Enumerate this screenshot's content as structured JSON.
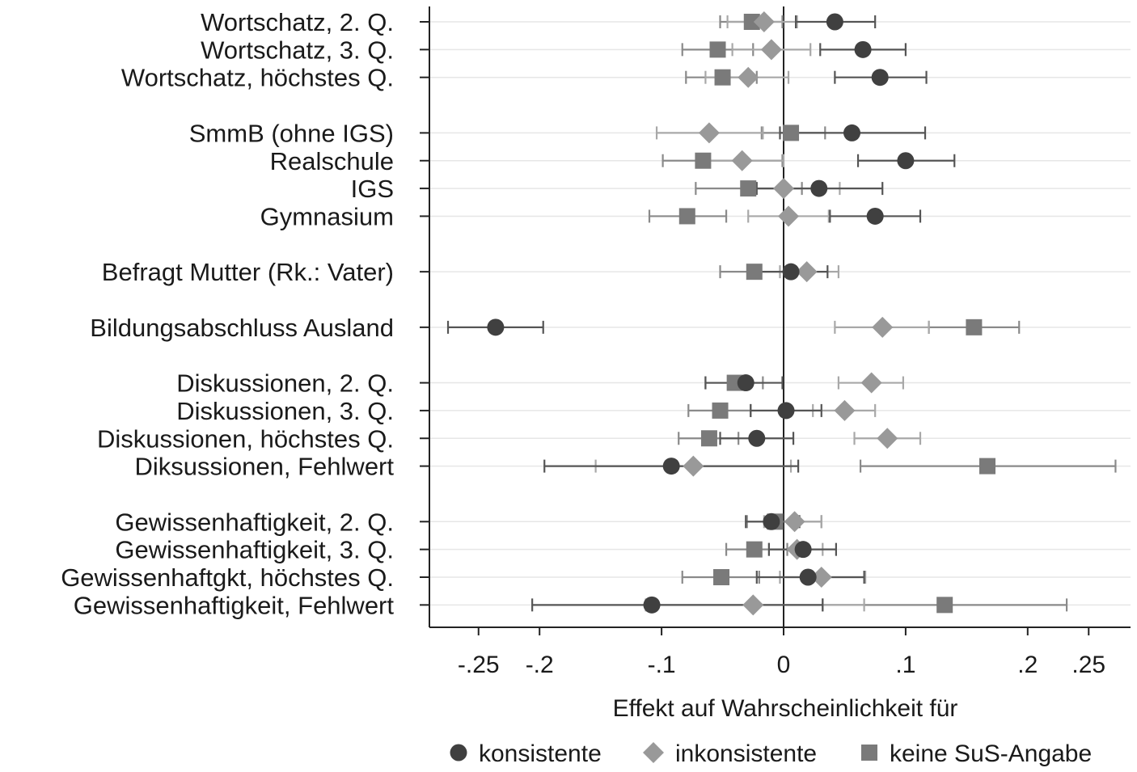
{
  "chart_data": {
    "type": "scatter",
    "subtype": "coefficient-plot-with-confidence-intervals",
    "title": "",
    "xlabel": "Effekt auf Wahrscheinlichkeit für",
    "ylabel": "",
    "xlim": [
      -0.29,
      0.27
    ],
    "xticks": [
      {
        "value": -0.25,
        "label": "-.25"
      },
      {
        "value": -0.2,
        "label": "-.2"
      },
      {
        "value": -0.1,
        "label": "-.1"
      },
      {
        "value": 0,
        "label": "0"
      },
      {
        "value": 0.1,
        "label": ".1"
      },
      {
        "value": 0.2,
        "label": ".2"
      },
      {
        "value": 0.25,
        "label": ".25"
      }
    ],
    "reference_line": 0,
    "grid": "horizontal",
    "legend_position": "bottom",
    "categories": [
      "Wortschatz, 2. Q.",
      "Wortschatz, 3. Q.",
      "Wortschatz, höchstes Q.",
      "SmmB (ohne IGS)",
      "Realschule",
      "IGS",
      "Gymnasium",
      "Befragt Mutter (Rk.: Vater)",
      "Bildungsabschluss Ausland",
      "Diskussionen, 2. Q.",
      "Diskussionen, 3. Q.",
      "Diskussionen, höchstes Q.",
      "Diksussionen, Fehlwert",
      "Gewissenhaftigkeit, 2. Q.",
      "Gewissenhaftigkeit, 3. Q.",
      "Gewissenhaftgkt, höchstes Q.",
      "Gewissenhaftigkeit, Fehlwert"
    ],
    "category_slots": [
      0,
      1,
      2,
      4,
      5,
      6,
      7,
      9,
      11,
      13,
      14,
      15,
      16,
      18,
      19,
      20,
      21
    ],
    "series": [
      {
        "name": "konsistente",
        "marker": "circle",
        "color": "#404040",
        "ci_color": "#555555",
        "values": [
          0.042,
          0.065,
          0.079,
          0.056,
          0.1,
          0.029,
          0.075,
          0.006,
          -0.236,
          -0.031,
          0.002,
          -0.022,
          -0.092,
          -0.01,
          0.016,
          0.02,
          -0.108
        ],
        "ci_low": [
          0.01,
          0.03,
          0.042,
          -0.003,
          0.061,
          -0.022,
          0.038,
          -0.019,
          -0.275,
          -0.064,
          -0.027,
          -0.052,
          -0.196,
          -0.031,
          -0.012,
          -0.022,
          -0.206
        ],
        "ci_high": [
          0.075,
          0.1,
          0.117,
          0.116,
          0.14,
          0.081,
          0.112,
          0.036,
          -0.197,
          -0.001,
          0.031,
          0.008,
          0.012,
          0.013,
          0.043,
          0.066,
          0.032
        ]
      },
      {
        "name": "inkonsistente",
        "marker": "diamond",
        "color": "#999999",
        "ci_color": "#a8a8a8",
        "values": [
          -0.016,
          -0.01,
          -0.029,
          -0.061,
          -0.034,
          0.0,
          0.004,
          0.019,
          0.081,
          0.072,
          0.05,
          0.085,
          -0.074,
          0.009,
          0.011,
          0.031,
          -0.025
        ],
        "ci_low": [
          -0.046,
          -0.042,
          -0.064,
          -0.104,
          -0.066,
          -0.028,
          -0.029,
          -0.003,
          0.042,
          0.045,
          0.024,
          0.058,
          -0.154,
          -0.016,
          -0.012,
          -0.003,
          -0.113
        ],
        "ci_high": [
          0.011,
          0.022,
          0.004,
          -0.017,
          0.0,
          0.046,
          0.037,
          0.045,
          0.119,
          0.098,
          0.075,
          0.112,
          0.006,
          0.031,
          0.032,
          0.067,
          0.066
        ]
      },
      {
        "name": "keine SuS-Angabe",
        "marker": "square",
        "color": "#7a7a7a",
        "ci_color": "#8a8a8a",
        "values": [
          -0.026,
          -0.054,
          -0.05,
          0.006,
          -0.066,
          -0.029,
          -0.079,
          -0.024,
          0.156,
          -0.04,
          -0.052,
          -0.061,
          0.167,
          -0.007,
          -0.024,
          -0.051,
          0.132
        ],
        "ci_low": [
          -0.052,
          -0.083,
          -0.08,
          -0.018,
          -0.099,
          -0.072,
          -0.11,
          -0.052,
          0.119,
          -0.064,
          -0.078,
          -0.086,
          0.063,
          -0.03,
          -0.047,
          -0.083,
          0.032
        ],
        "ci_high": [
          -0.001,
          -0.025,
          -0.022,
          0.034,
          -0.001,
          0.015,
          -0.047,
          0.004,
          0.193,
          -0.017,
          -0.027,
          -0.037,
          0.272,
          0.031,
          0.003,
          -0.02,
          0.232
        ]
      }
    ]
  }
}
